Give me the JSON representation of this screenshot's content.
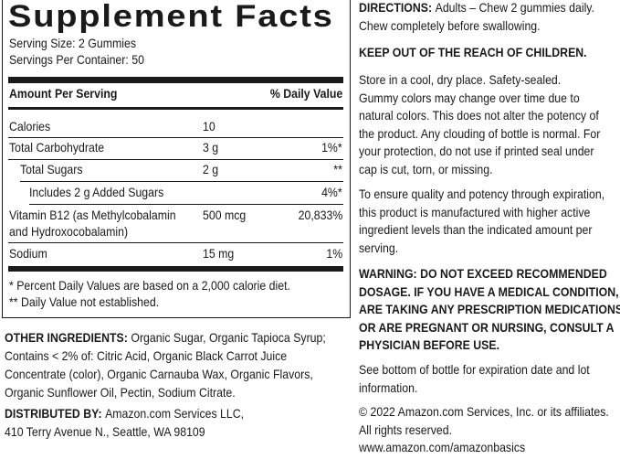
{
  "facts": {
    "title": "Supplement Facts",
    "serving_size": "Serving Size: 2 Gummies",
    "servings_per_container": "Servings Per Container: 50",
    "header": {
      "amount": "Amount Per Serving",
      "dv": "% Daily Value"
    },
    "rows": [
      {
        "name_lines": [
          "Calories"
        ],
        "amount": "10"
      },
      {
        "name_lines": [
          "Total Carbohydrate"
        ],
        "amount": "3 g",
        "dv": "1%*"
      },
      {
        "name_lines": [
          "Total Sugars"
        ],
        "amount": "2 g",
        "dv": "**"
      },
      {
        "name_lines": [
          "Includes 2 g Added Sugars"
        ],
        "dv": "4%*"
      },
      {
        "name_lines": [
          "Vitamin B12 (as Methylcobalamin",
          "and Hydroxocobalamin)"
        ],
        "amount": "500 mcg",
        "dv": "20,833%"
      },
      {
        "name_lines": [
          "Sodium"
        ],
        "amount": "15 mg",
        "dv": "1%"
      }
    ],
    "footnotes": [
      "* Percent Daily Values are based on a 2,000 calorie diet.",
      "** Daily Value not established."
    ]
  },
  "other_ingredients": {
    "label": "OTHER INGREDIENTS:",
    "lines": [
      "Organic Sugar, Organic Tapioca Syrup;",
      "Contains < 2% of: Citric Acid, Organic Black Carrot Juice",
      "Concentrate (color), Organic Carnauba Wax, Organic Flavors,",
      "Organic Sunflower Oil, Pectin, Sodium Citrate."
    ]
  },
  "distributed_by": {
    "label": "DISTRIBUTED BY:",
    "lines": [
      "Amazon.com Services LLC,",
      "410 Terry Avenue N., Seattle, WA 98109"
    ]
  },
  "directions": {
    "label": "DIRECTIONS:",
    "lines": [
      "Adults – Chew 2 gummies daily.",
      "Chew completely before swallowing."
    ]
  },
  "paragraphs": [
    {
      "bold": true,
      "lines": [
        "KEEP OUT OF THE REACH OF CHILDREN."
      ]
    },
    {
      "bold": false,
      "lines": [
        "Store in a cool, dry place. Safety-sealed.",
        "Gummy colors may change over time due to",
        "natural colors. This does not alter the potency of",
        "the product. Any clouding of bottle is normal. For",
        "your protection, do not use if printed seal under",
        "cap is cut, torn, or missing."
      ]
    },
    {
      "bold": false,
      "lines": [
        "To ensure quality and potency through expiration,",
        "this product is manufactured with higher active",
        "ingredient levels than the indicated amount per",
        "serving."
      ]
    },
    {
      "bold": true,
      "lines": [
        "WARNING:  DO NOT EXCEED RECOMMENDED",
        "DOSAGE. IF YOU HAVE A MEDICAL CONDITION,",
        "ARE TAKING ANY PRESCRIPTION MEDICATIONS,",
        "OR ARE PREGNANT OR NURSING, CONSULT A",
        "PHYSICIAN BEFORE USE."
      ]
    },
    {
      "bold": false,
      "lines": [
        "See bottom of bottle for expiration date and lot",
        "information."
      ]
    },
    {
      "bold": false,
      "lines": [
        "© 2022 Amazon.com Services, Inc. or its affiliates.",
        "All rights reserved."
      ]
    },
    {
      "bold": false,
      "lines": [
        "www.amazon.com/amazonbasics"
      ]
    }
  ]
}
